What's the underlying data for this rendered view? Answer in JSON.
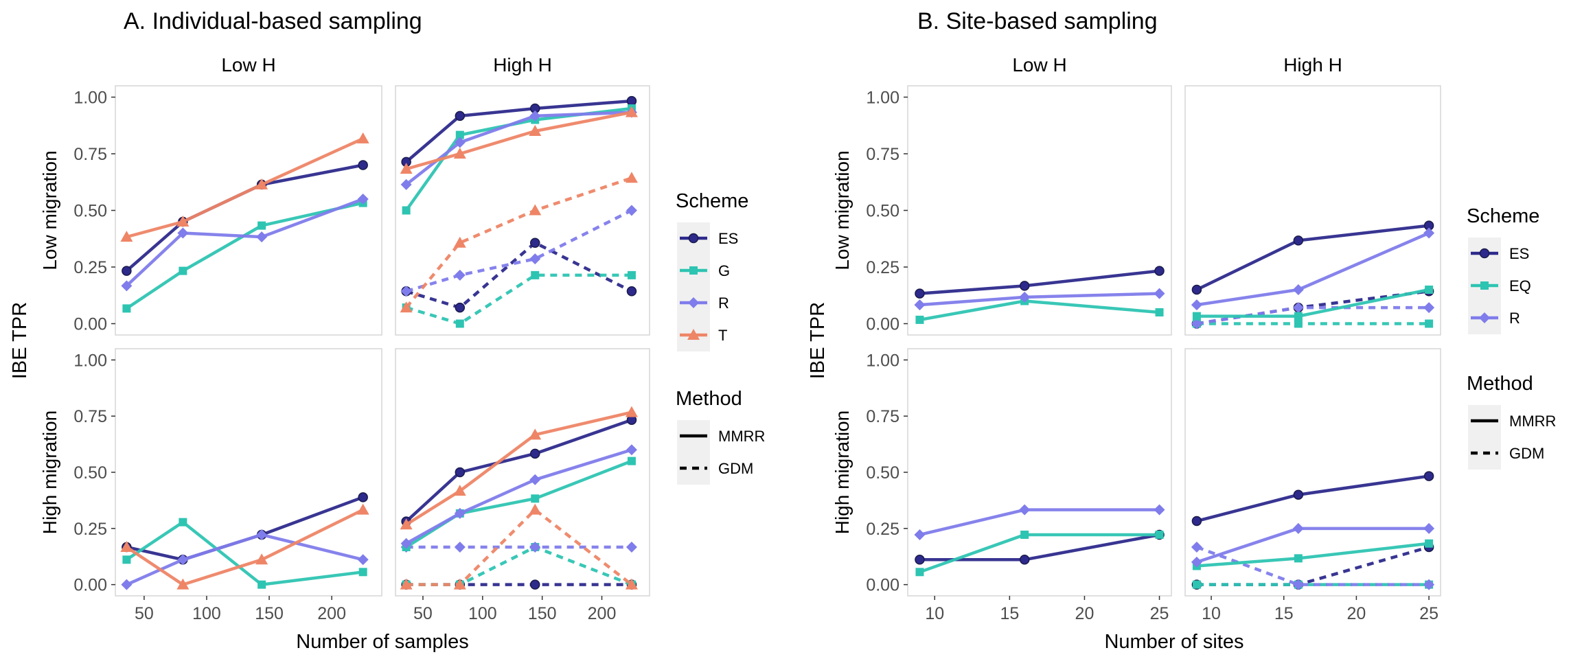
{
  "chart_data": [
    {
      "type": "line",
      "title": "A. Individual-based sampling",
      "xlabel": "Number of samples",
      "ylabel": "IBE TPR",
      "xlim": [
        27,
        240
      ],
      "xticks": [
        50,
        100,
        150,
        200
      ],
      "ylim": [
        -0.05,
        1.05
      ],
      "yticks": [
        "0.00",
        "0.25",
        "0.50",
        "0.75",
        "1.00"
      ],
      "col_strips": [
        "Low H",
        "High H"
      ],
      "row_strips": [
        "Low migration",
        "High migration"
      ],
      "legend_position": "right",
      "legend": {
        "scheme_title": "Scheme",
        "scheme_entries": [
          {
            "key": "ES",
            "label": "ES",
            "color": "#2D2A8C",
            "marker": "circle"
          },
          {
            "key": "G",
            "label": "G",
            "color": "#2EC4B2",
            "marker": "square"
          },
          {
            "key": "R",
            "label": "R",
            "color": "#7F7CEB",
            "marker": "diamond"
          },
          {
            "key": "T",
            "label": "T",
            "color": "#EE8566",
            "marker": "triangle"
          }
        ],
        "method_title": "Method",
        "method_entries": [
          {
            "label": "MMRR",
            "dash": "solid"
          },
          {
            "label": "GDM",
            "dash": "dashed"
          }
        ]
      },
      "panels": [
        {
          "row": 0,
          "col": 0,
          "series": [
            {
              "scheme": "ES",
              "method": "MMRR",
              "x": [
                36,
                81,
                144,
                225
              ],
              "y": [
                0.233,
                0.45,
                0.614,
                0.7
              ]
            },
            {
              "scheme": "G",
              "method": "MMRR",
              "x": [
                36,
                81,
                144,
                225
              ],
              "y": [
                0.067,
                0.233,
                0.433,
                0.533
              ]
            },
            {
              "scheme": "R",
              "method": "MMRR",
              "x": [
                36,
                81,
                144,
                225
              ],
              "y": [
                0.167,
                0.4,
                0.383,
                0.55
              ]
            },
            {
              "scheme": "T",
              "method": "MMRR",
              "x": [
                36,
                81,
                144,
                225
              ],
              "y": [
                0.383,
                0.45,
                0.614,
                0.817
              ]
            }
          ]
        },
        {
          "row": 0,
          "col": 1,
          "series": [
            {
              "scheme": "ES",
              "method": "MMRR",
              "x": [
                36,
                81,
                144,
                225
              ],
              "y": [
                0.714,
                0.917,
                0.95,
                0.983
              ]
            },
            {
              "scheme": "G",
              "method": "MMRR",
              "x": [
                36,
                81,
                144,
                225
              ],
              "y": [
                0.5,
                0.833,
                0.9,
                0.95
              ]
            },
            {
              "scheme": "R",
              "method": "MMRR",
              "x": [
                36,
                81,
                144,
                225
              ],
              "y": [
                0.614,
                0.8,
                0.917,
                0.933
              ]
            },
            {
              "scheme": "T",
              "method": "MMRR",
              "x": [
                36,
                81,
                144,
                225
              ],
              "y": [
                0.683,
                0.75,
                0.85,
                0.933
              ]
            },
            {
              "scheme": "ES",
              "method": "GDM",
              "x": [
                36,
                81,
                144,
                225
              ],
              "y": [
                0.143,
                0.071,
                0.357,
                0.143
              ]
            },
            {
              "scheme": "G",
              "method": "GDM",
              "x": [
                36,
                81,
                144,
                225
              ],
              "y": [
                0.071,
                0.0,
                0.214,
                0.214
              ]
            },
            {
              "scheme": "R",
              "method": "GDM",
              "x": [
                36,
                81,
                144,
                225
              ],
              "y": [
                0.143,
                0.214,
                0.286,
                0.5
              ]
            },
            {
              "scheme": "T",
              "method": "GDM",
              "x": [
                36,
                81,
                144,
                225
              ],
              "y": [
                0.071,
                0.357,
                0.5,
                0.643
              ]
            }
          ]
        },
        {
          "row": 1,
          "col": 0,
          "series": [
            {
              "scheme": "ES",
              "method": "MMRR",
              "x": [
                36,
                81,
                144,
                225
              ],
              "y": [
                0.167,
                0.111,
                0.222,
                0.389
              ]
            },
            {
              "scheme": "G",
              "method": "MMRR",
              "x": [
                36,
                81,
                144,
                225
              ],
              "y": [
                0.111,
                0.278,
                0.0,
                0.056
              ]
            },
            {
              "scheme": "R",
              "method": "MMRR",
              "x": [
                36,
                81,
                144,
                225
              ],
              "y": [
                0.0,
                0.111,
                0.222,
                0.111
              ]
            },
            {
              "scheme": "T",
              "method": "MMRR",
              "x": [
                36,
                81,
                144,
                225
              ],
              "y": [
                0.167,
                0.0,
                0.111,
                0.333
              ]
            }
          ]
        },
        {
          "row": 1,
          "col": 1,
          "series": [
            {
              "scheme": "ES",
              "method": "MMRR",
              "x": [
                36,
                81,
                144,
                225
              ],
              "y": [
                0.281,
                0.5,
                0.583,
                0.733
              ]
            },
            {
              "scheme": "G",
              "method": "MMRR",
              "x": [
                36,
                81,
                144,
                225
              ],
              "y": [
                0.167,
                0.317,
                0.383,
                0.55
              ]
            },
            {
              "scheme": "R",
              "method": "MMRR",
              "x": [
                36,
                81,
                144,
                225
              ],
              "y": [
                0.183,
                0.317,
                0.467,
                0.6
              ]
            },
            {
              "scheme": "T",
              "method": "MMRR",
              "x": [
                36,
                81,
                144,
                225
              ],
              "y": [
                0.267,
                0.417,
                0.667,
                0.767
              ]
            },
            {
              "scheme": "ES",
              "method": "GDM",
              "x": [
                36,
                81,
                144,
                225
              ],
              "y": [
                0.0,
                0.0,
                0.0,
                0.0
              ]
            },
            {
              "scheme": "G",
              "method": "GDM",
              "x": [
                36,
                81,
                144,
                225
              ],
              "y": [
                0.0,
                0.0,
                0.167,
                0.0
              ]
            },
            {
              "scheme": "R",
              "method": "GDM",
              "x": [
                36,
                81,
                144,
                225
              ],
              "y": [
                0.167,
                0.167,
                0.167,
                0.167
              ]
            },
            {
              "scheme": "T",
              "method": "GDM",
              "x": [
                36,
                81,
                144,
                225
              ],
              "y": [
                0.0,
                0.0,
                0.333,
                0.0
              ]
            }
          ]
        }
      ]
    },
    {
      "type": "line",
      "title": "B. Site-based sampling",
      "xlabel": "Number of sites",
      "ylabel": "IBE TPR",
      "xlim": [
        8.2,
        25.8
      ],
      "xticks": [
        10,
        15,
        20,
        25
      ],
      "ylim": [
        -0.05,
        1.05
      ],
      "yticks": [
        "0.00",
        "0.25",
        "0.50",
        "0.75",
        "1.00"
      ],
      "col_strips": [
        "Low H",
        "High H"
      ],
      "row_strips": [
        "Low migration",
        "High migration"
      ],
      "legend_position": "right",
      "legend": {
        "scheme_title": "Scheme",
        "scheme_entries": [
          {
            "key": "ES",
            "label": "ES",
            "color": "#2D2A8C",
            "marker": "circle"
          },
          {
            "key": "EQ",
            "label": "EQ",
            "color": "#2EC4B2",
            "marker": "square"
          },
          {
            "key": "R",
            "label": "R",
            "color": "#7F7CEB",
            "marker": "diamond"
          }
        ],
        "method_title": "Method",
        "method_entries": [
          {
            "label": "MMRR",
            "dash": "solid"
          },
          {
            "label": "GDM",
            "dash": "dashed"
          }
        ]
      },
      "panels": [
        {
          "row": 0,
          "col": 0,
          "series": [
            {
              "scheme": "ES",
              "method": "MMRR",
              "x": [
                9,
                16,
                25
              ],
              "y": [
                0.133,
                0.167,
                0.233
              ]
            },
            {
              "scheme": "EQ",
              "method": "MMRR",
              "x": [
                9,
                16,
                25
              ],
              "y": [
                0.017,
                0.1,
                0.05
              ]
            },
            {
              "scheme": "R",
              "method": "MMRR",
              "x": [
                9,
                16,
                25
              ],
              "y": [
                0.083,
                0.117,
                0.133
              ]
            }
          ]
        },
        {
          "row": 0,
          "col": 1,
          "series": [
            {
              "scheme": "ES",
              "method": "MMRR",
              "x": [
                9,
                16,
                25
              ],
              "y": [
                0.15,
                0.367,
                0.433
              ]
            },
            {
              "scheme": "EQ",
              "method": "MMRR",
              "x": [
                9,
                16,
                25
              ],
              "y": [
                0.033,
                0.033,
                0.15
              ]
            },
            {
              "scheme": "R",
              "method": "MMRR",
              "x": [
                9,
                16,
                25
              ],
              "y": [
                0.083,
                0.15,
                0.4
              ]
            },
            {
              "scheme": "ES",
              "method": "GDM",
              "x": [
                9,
                16,
                25
              ],
              "y": [
                0.0,
                0.071,
                0.143
              ]
            },
            {
              "scheme": "EQ",
              "method": "GDM",
              "x": [
                9,
                16,
                25
              ],
              "y": [
                0.0,
                0.0,
                0.0
              ]
            },
            {
              "scheme": "R",
              "method": "GDM",
              "x": [
                9,
                16,
                25
              ],
              "y": [
                0.0,
                0.071,
                0.071
              ]
            }
          ]
        },
        {
          "row": 1,
          "col": 0,
          "series": [
            {
              "scheme": "ES",
              "method": "MMRR",
              "x": [
                9,
                16,
                25
              ],
              "y": [
                0.111,
                0.111,
                0.222
              ]
            },
            {
              "scheme": "EQ",
              "method": "MMRR",
              "x": [
                9,
                16,
                25
              ],
              "y": [
                0.056,
                0.222,
                0.222
              ]
            },
            {
              "scheme": "R",
              "method": "MMRR",
              "x": [
                9,
                16,
                25
              ],
              "y": [
                0.222,
                0.333,
                0.333
              ]
            }
          ]
        },
        {
          "row": 1,
          "col": 1,
          "series": [
            {
              "scheme": "ES",
              "method": "MMRR",
              "x": [
                9,
                16,
                25
              ],
              "y": [
                0.283,
                0.4,
                0.483
              ]
            },
            {
              "scheme": "EQ",
              "method": "MMRR",
              "x": [
                9,
                16,
                25
              ],
              "y": [
                0.083,
                0.117,
                0.183
              ]
            },
            {
              "scheme": "R",
              "method": "MMRR",
              "x": [
                9,
                16,
                25
              ],
              "y": [
                0.1,
                0.25,
                0.25
              ]
            },
            {
              "scheme": "ES",
              "method": "GDM",
              "x": [
                9,
                16,
                25
              ],
              "y": [
                0.0,
                0.0,
                0.167
              ]
            },
            {
              "scheme": "EQ",
              "method": "GDM",
              "x": [
                9,
                16,
                25
              ],
              "y": [
                0.0,
                0.0,
                0.0
              ]
            },
            {
              "scheme": "R",
              "method": "GDM",
              "x": [
                9,
                16,
                25
              ],
              "y": [
                0.167,
                0.0,
                0.0
              ]
            }
          ]
        }
      ]
    }
  ]
}
